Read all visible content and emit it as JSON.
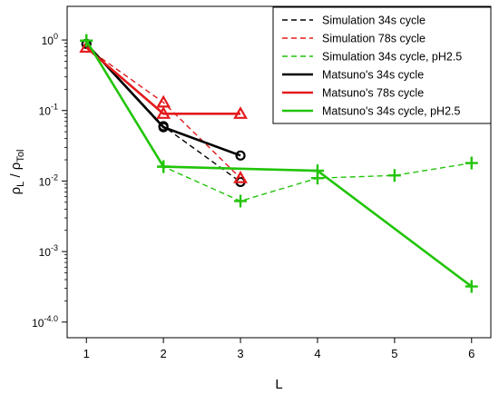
{
  "chart_data": {
    "type": "line",
    "title": "",
    "xlabel": "L",
    "ylabel_main": "ρ",
    "ylabel_sub1": "L",
    "ylabel_sep": " / ",
    "ylabel_main2": "ρ",
    "ylabel_sub2": "Tol",
    "xlim": [
      0.75,
      6.25
    ],
    "ylog": true,
    "ylim": [
      6e-05,
      3
    ],
    "xticks": [
      1,
      2,
      3,
      4,
      5,
      6
    ],
    "xtick_labels": [
      "1",
      "2",
      "3",
      "4",
      "5",
      "6"
    ],
    "yticks": [
      0.0001,
      0.001,
      0.01,
      0.1,
      1
    ],
    "ytick_bases": [
      "10",
      "10",
      "10",
      "10",
      "10"
    ],
    "ytick_exps": [
      "-4",
      "-3",
      "-2",
      "-1",
      "0"
    ],
    "ytick_suffix": [
      ".0",
      "",
      "",
      "",
      ""
    ],
    "legend_position": "top-right",
    "grid": false,
    "series": [
      {
        "name": "Simulation 34s cycle",
        "color": "#000000",
        "dash": "dashed",
        "x": [
          1,
          2,
          3
        ],
        "y": [
          0.88,
          0.06,
          0.0097
        ],
        "marker": "circle",
        "marker_at": [
          1,
          2
        ]
      },
      {
        "name": "Simulation 78s cycle",
        "color": "#e31a1c",
        "dash": "dashed",
        "x": [
          1,
          2,
          3
        ],
        "y": [
          0.78,
          0.13,
          0.011
        ],
        "marker": "triangle",
        "marker_at": [
          1,
          2
        ]
      },
      {
        "name": "Simulation 34s cycle, pH2.5",
        "color": "#22c40a",
        "dash": "dashed",
        "x": [
          1,
          2,
          3,
          4,
          5,
          6
        ],
        "y": [
          0.98,
          0.016,
          0.0052,
          0.011,
          0.012,
          0.018
        ],
        "marker": "plus",
        "marker_at": [
          0,
          1,
          2,
          3,
          4,
          5
        ]
      },
      {
        "name": "Matsuno's 34s cycle",
        "color": "#000000",
        "dash": "solid",
        "x": [
          1,
          2,
          3
        ],
        "y": [
          0.88,
          0.058,
          0.023
        ],
        "marker": "circle",
        "marker_at": [
          0,
          1,
          2
        ]
      },
      {
        "name": "Matsuno's 78s cycle",
        "color": "#e31a1c",
        "dash": "solid",
        "x": [
          1,
          2,
          3
        ],
        "y": [
          0.78,
          0.09,
          0.09
        ],
        "marker": "triangle",
        "marker_at": [
          0,
          1,
          2
        ]
      },
      {
        "name": "Matsuno's 34s cycle, pH2.5",
        "color": "#22c40a",
        "dash": "solid",
        "x": [
          1,
          2,
          4,
          6
        ],
        "y": [
          0.98,
          0.016,
          0.014,
          0.00032
        ],
        "marker": "plus",
        "marker_at": [
          0,
          1,
          2,
          3
        ]
      }
    ]
  }
}
